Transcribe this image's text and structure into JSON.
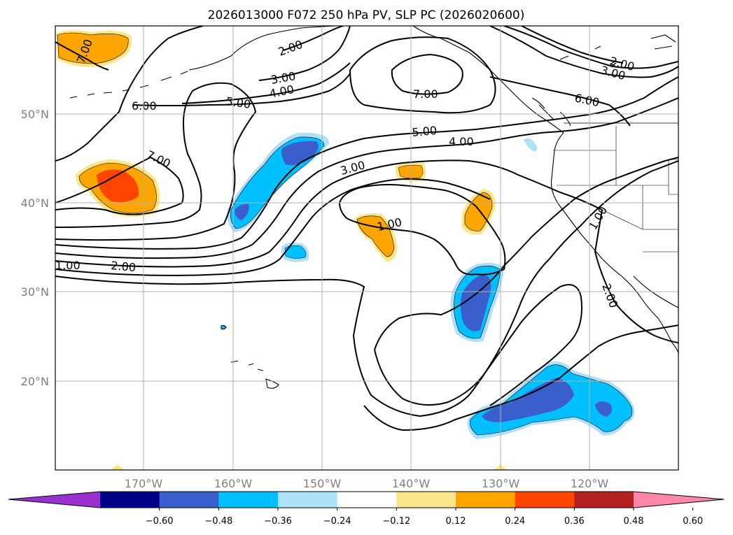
{
  "title": "2026013000 F072 250 hPa PV, SLP PC (2026020600)",
  "map": {
    "lat_labels": [
      "50°N",
      "40°N",
      "30°N",
      "20°N"
    ],
    "lon_labels": [
      "170°W",
      "160°W",
      "150°W",
      "140°W",
      "130°W",
      "120°W"
    ],
    "gridlines": true
  },
  "colorbar": {
    "ticks": [
      "−0.60",
      "−0.48",
      "−0.36",
      "−0.24",
      "−0.12",
      "0.12",
      "0.24",
      "0.36",
      "0.48",
      "0.60"
    ],
    "colors": [
      "#9b30d0",
      "#00008b",
      "#3a5fcd",
      "#00bfff",
      "#aee0fa",
      "#ffffff",
      "#fde68a",
      "#ffa500",
      "#ff4500",
      "#b22222",
      "#ff88aa"
    ],
    "extend": "both"
  },
  "contour_labels": [
    {
      "text": "7.00"
    },
    {
      "text": "2.00"
    },
    {
      "text": "3.00"
    },
    {
      "text": "4.00"
    },
    {
      "text": "5.00"
    },
    {
      "text": "6.00"
    },
    {
      "text": "7.00"
    },
    {
      "text": "2.00"
    },
    {
      "text": "3.00"
    },
    {
      "text": "6.00"
    },
    {
      "text": "5.00"
    },
    {
      "text": "4.00"
    },
    {
      "text": "3.00"
    },
    {
      "text": "7.00"
    },
    {
      "text": "1.00"
    },
    {
      "text": "1.00"
    },
    {
      "text": "2.00"
    },
    {
      "text": "1.00"
    },
    {
      "text": "2.00"
    }
  ]
}
